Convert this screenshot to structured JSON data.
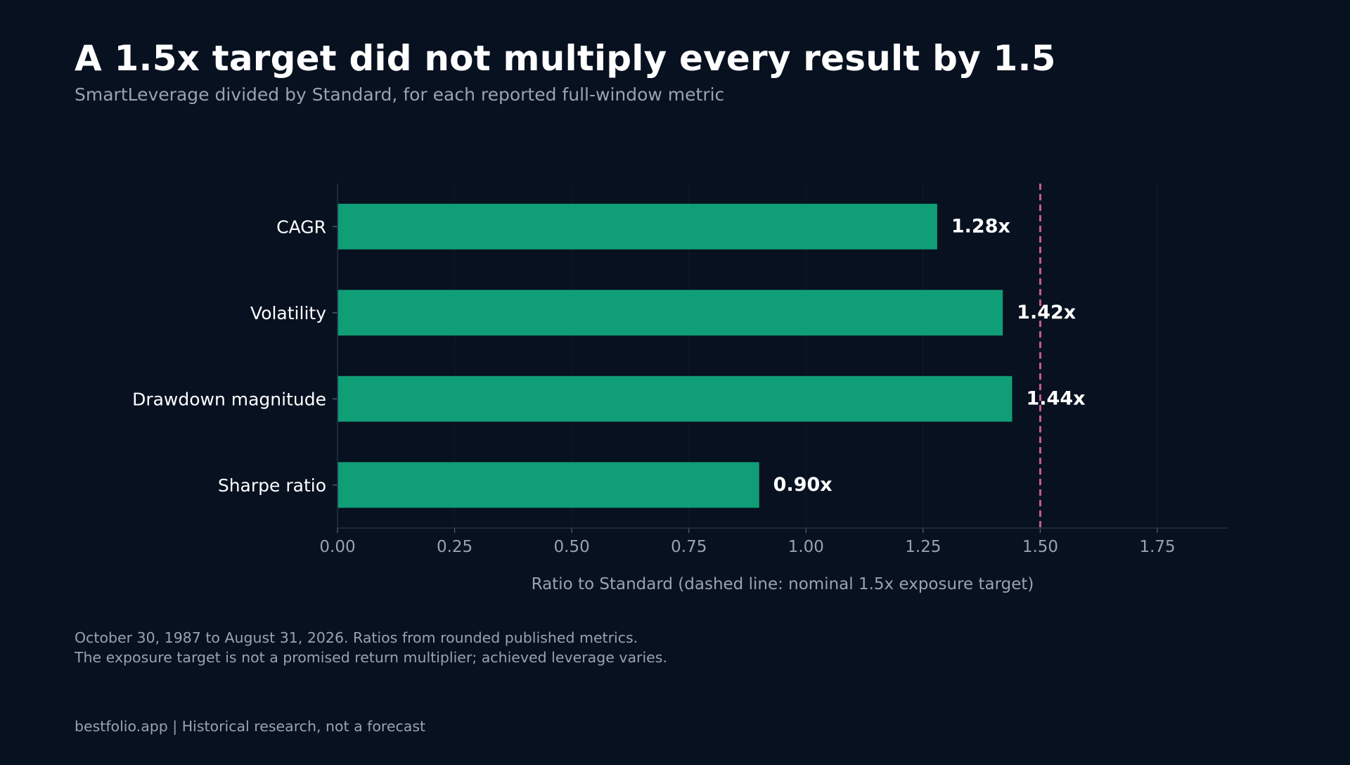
{
  "header": {
    "title": "A 1.5x target did not multiply every result by 1.5",
    "subtitle": "SmartLeverage divided by Standard, for each reported full-window metric"
  },
  "chart_data": {
    "type": "bar",
    "orientation": "horizontal",
    "categories": [
      "CAGR",
      "Volatility",
      "Drawdown magnitude",
      "Sharpe ratio"
    ],
    "values": [
      1.28,
      1.42,
      1.44,
      0.9
    ],
    "value_labels": [
      "1.28x",
      "1.42x",
      "1.44x",
      "0.90x"
    ],
    "xlabel": "Ratio to Standard (dashed line: nominal 1.5x exposure target)",
    "xlim": [
      0,
      1.9
    ],
    "xticks": [
      0,
      0.25,
      0.5,
      0.75,
      1.0,
      1.25,
      1.5,
      1.75
    ],
    "xtick_labels": [
      "0.00",
      "0.25",
      "0.50",
      "0.75",
      "1.00",
      "1.25",
      "1.50",
      "1.75"
    ],
    "reference_line": 1.5,
    "grid": "vertical, faint",
    "colors": {
      "bar": "#109e77",
      "reference": "#cc5a8a",
      "background": "#071120",
      "grid": "#111c2b",
      "axis": "#243244"
    }
  },
  "notes": {
    "line1": "October 30, 1987 to August 31, 2026. Ratios from rounded published metrics.",
    "line2": "The exposure target is not a promised return multiplier; achieved leverage varies."
  },
  "footer": {
    "text": "bestfolio.app  |  Historical research, not a forecast"
  }
}
